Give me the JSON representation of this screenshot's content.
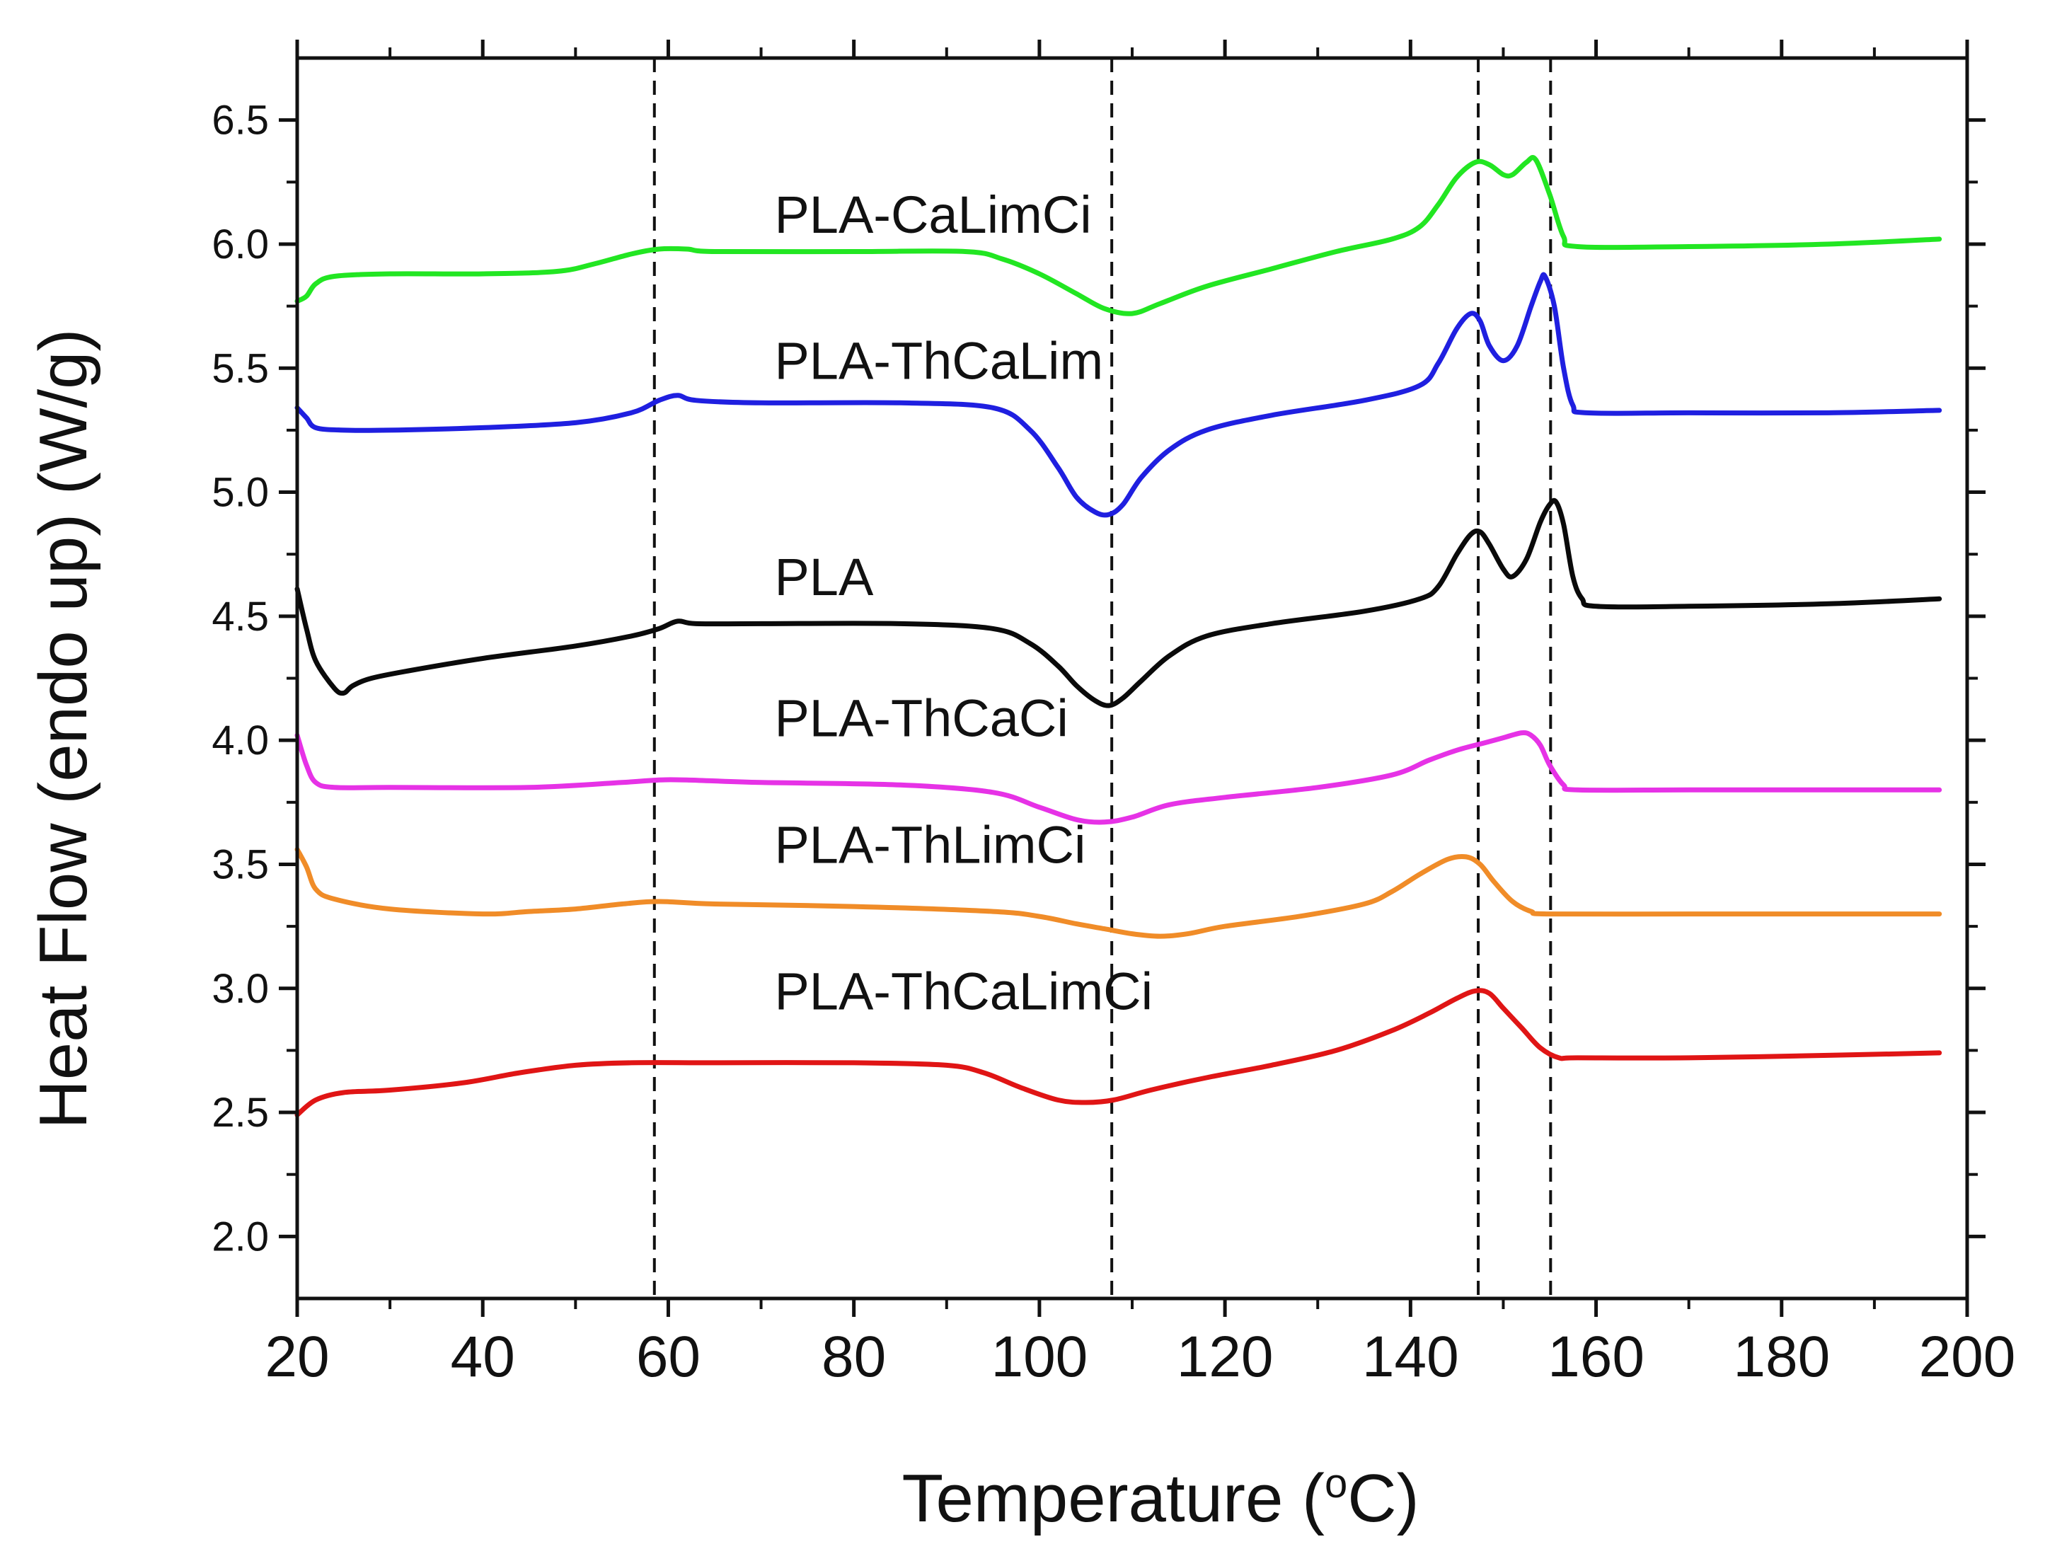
{
  "chart_data": {
    "type": "line",
    "title": "",
    "xlabel": "Temperature (",
    "xlabel_sup": "o",
    "xlabel_suffix": "C)",
    "ylabel": "Heat Flow (endo up) (W/g)",
    "xlim": [
      20,
      200
    ],
    "ylim": [
      1.75,
      6.75
    ],
    "xticks": [
      20,
      40,
      60,
      80,
      100,
      120,
      140,
      160,
      180,
      200
    ],
    "yticks": [
      2.0,
      2.5,
      3.0,
      3.5,
      4.0,
      4.5,
      5.0,
      5.5,
      6.0,
      6.5
    ],
    "ytick_labels": [
      "2.0",
      "2.5",
      "3.0",
      "3.5",
      "4.0",
      "4.5",
      "5.0",
      "5.5",
      "6.0",
      "6.5"
    ],
    "minor_x_step": 10,
    "minor_y_step": 0.25,
    "reference_lines_x": [
      58.5,
      107.8,
      147.3,
      155.1
    ],
    "series": [
      {
        "name": "PLA-CaLimCi",
        "color": "#22e622",
        "label_at": [
          60,
          6.12
        ],
        "points": [
          [
            20,
            5.77
          ],
          [
            21,
            5.79
          ],
          [
            22,
            5.84
          ],
          [
            24,
            5.87
          ],
          [
            30,
            5.88
          ],
          [
            40,
            5.88
          ],
          [
            48,
            5.89
          ],
          [
            52,
            5.92
          ],
          [
            56,
            5.96
          ],
          [
            59,
            5.98
          ],
          [
            62,
            5.98
          ],
          [
            65,
            5.97
          ],
          [
            80,
            5.97
          ],
          [
            92,
            5.97
          ],
          [
            96,
            5.94
          ],
          [
            100,
            5.88
          ],
          [
            104,
            5.8
          ],
          [
            107,
            5.74
          ],
          [
            110,
            5.72
          ],
          [
            113,
            5.76
          ],
          [
            118,
            5.83
          ],
          [
            125,
            5.9
          ],
          [
            132,
            5.97
          ],
          [
            138,
            6.02
          ],
          [
            141,
            6.07
          ],
          [
            143,
            6.16
          ],
          [
            145,
            6.27
          ],
          [
            147,
            6.33
          ],
          [
            148.5,
            6.32
          ],
          [
            150,
            6.28
          ],
          [
            151,
            6.28
          ],
          [
            152.5,
            6.33
          ],
          [
            153.5,
            6.34
          ],
          [
            155,
            6.2
          ],
          [
            156.5,
            6.03
          ],
          [
            158,
            5.99
          ],
          [
            170,
            5.99
          ],
          [
            185,
            6.0
          ],
          [
            197,
            6.02
          ]
        ]
      },
      {
        "name": "PLA-ThCaLim",
        "color": "#1f1fe0",
        "label_at": [
          60,
          5.53
        ],
        "points": [
          [
            20,
            5.34
          ],
          [
            21,
            5.3
          ],
          [
            22,
            5.26
          ],
          [
            25,
            5.25
          ],
          [
            30,
            5.25
          ],
          [
            40,
            5.26
          ],
          [
            50,
            5.28
          ],
          [
            56,
            5.32
          ],
          [
            59,
            5.37
          ],
          [
            61,
            5.39
          ],
          [
            63,
            5.37
          ],
          [
            70,
            5.36
          ],
          [
            85,
            5.36
          ],
          [
            95,
            5.34
          ],
          [
            99,
            5.25
          ],
          [
            102,
            5.1
          ],
          [
            104,
            4.98
          ],
          [
            106,
            4.92
          ],
          [
            107.5,
            4.91
          ],
          [
            109,
            4.95
          ],
          [
            111,
            5.06
          ],
          [
            114,
            5.17
          ],
          [
            118,
            5.25
          ],
          [
            125,
            5.31
          ],
          [
            135,
            5.37
          ],
          [
            141,
            5.43
          ],
          [
            143,
            5.52
          ],
          [
            145,
            5.66
          ],
          [
            146.5,
            5.72
          ],
          [
            147.5,
            5.69
          ],
          [
            148.5,
            5.59
          ],
          [
            150,
            5.53
          ],
          [
            151.5,
            5.59
          ],
          [
            153,
            5.75
          ],
          [
            154,
            5.85
          ],
          [
            154.5,
            5.87
          ],
          [
            155.5,
            5.75
          ],
          [
            156.5,
            5.5
          ],
          [
            157.5,
            5.35
          ],
          [
            159,
            5.32
          ],
          [
            170,
            5.32
          ],
          [
            185,
            5.32
          ],
          [
            197,
            5.33
          ]
        ]
      },
      {
        "name": "PLA",
        "color": "#0a0a0a",
        "label_at": [
          60,
          4.66
        ],
        "points": [
          [
            20,
            4.61
          ],
          [
            21,
            4.45
          ],
          [
            22,
            4.32
          ],
          [
            24,
            4.21
          ],
          [
            25,
            4.19
          ],
          [
            26,
            4.22
          ],
          [
            28,
            4.25
          ],
          [
            32,
            4.28
          ],
          [
            40,
            4.33
          ],
          [
            50,
            4.38
          ],
          [
            56,
            4.42
          ],
          [
            59,
            4.45
          ],
          [
            61,
            4.48
          ],
          [
            63,
            4.47
          ],
          [
            70,
            4.47
          ],
          [
            85,
            4.47
          ],
          [
            95,
            4.45
          ],
          [
            99,
            4.39
          ],
          [
            102,
            4.3
          ],
          [
            104,
            4.22
          ],
          [
            106,
            4.16
          ],
          [
            107.5,
            4.14
          ],
          [
            109,
            4.17
          ],
          [
            111,
            4.24
          ],
          [
            114,
            4.34
          ],
          [
            118,
            4.42
          ],
          [
            125,
            4.47
          ],
          [
            135,
            4.52
          ],
          [
            141,
            4.57
          ],
          [
            143,
            4.62
          ],
          [
            145,
            4.75
          ],
          [
            146.5,
            4.83
          ],
          [
            147.5,
            4.84
          ],
          [
            148.5,
            4.79
          ],
          [
            150,
            4.69
          ],
          [
            151,
            4.66
          ],
          [
            152.5,
            4.73
          ],
          [
            154,
            4.88
          ],
          [
            155,
            4.95
          ],
          [
            155.7,
            4.96
          ],
          [
            156.5,
            4.87
          ],
          [
            157.5,
            4.66
          ],
          [
            158.5,
            4.57
          ],
          [
            160,
            4.54
          ],
          [
            170,
            4.54
          ],
          [
            185,
            4.55
          ],
          [
            197,
            4.57
          ]
        ]
      },
      {
        "name": "PLA-ThCaCi",
        "color": "#e632e6",
        "label_at": [
          60,
          4.09
        ],
        "points": [
          [
            20,
            4.02
          ],
          [
            21,
            3.9
          ],
          [
            22,
            3.83
          ],
          [
            24,
            3.81
          ],
          [
            30,
            3.81
          ],
          [
            45,
            3.81
          ],
          [
            55,
            3.83
          ],
          [
            59,
            3.84
          ],
          [
            62,
            3.84
          ],
          [
            70,
            3.83
          ],
          [
            85,
            3.82
          ],
          [
            95,
            3.79
          ],
          [
            100,
            3.73
          ],
          [
            104,
            3.68
          ],
          [
            107,
            3.67
          ],
          [
            110,
            3.69
          ],
          [
            114,
            3.74
          ],
          [
            120,
            3.77
          ],
          [
            130,
            3.81
          ],
          [
            138,
            3.86
          ],
          [
            142,
            3.92
          ],
          [
            145,
            3.96
          ],
          [
            148,
            3.99
          ],
          [
            150,
            4.01
          ],
          [
            152,
            4.03
          ],
          [
            153,
            4.02
          ],
          [
            154,
            3.98
          ],
          [
            155,
            3.9
          ],
          [
            156.5,
            3.82
          ],
          [
            158,
            3.8
          ],
          [
            170,
            3.8
          ],
          [
            185,
            3.8
          ],
          [
            197,
            3.8
          ]
        ]
      },
      {
        "name": "PLA-ThLimCi",
        "color": "#f08c28",
        "label_at": [
          60,
          3.58
        ],
        "points": [
          [
            20,
            3.56
          ],
          [
            21,
            3.49
          ],
          [
            22,
            3.4
          ],
          [
            24,
            3.36
          ],
          [
            30,
            3.32
          ],
          [
            40,
            3.3
          ],
          [
            45,
            3.31
          ],
          [
            50,
            3.32
          ],
          [
            55,
            3.34
          ],
          [
            59,
            3.35
          ],
          [
            65,
            3.34
          ],
          [
            80,
            3.33
          ],
          [
            95,
            3.31
          ],
          [
            100,
            3.29
          ],
          [
            104,
            3.26
          ],
          [
            107,
            3.24
          ],
          [
            110,
            3.22
          ],
          [
            113,
            3.21
          ],
          [
            116,
            3.22
          ],
          [
            120,
            3.25
          ],
          [
            128,
            3.29
          ],
          [
            135,
            3.34
          ],
          [
            138,
            3.39
          ],
          [
            141,
            3.46
          ],
          [
            144,
            3.52
          ],
          [
            146,
            3.53
          ],
          [
            147.5,
            3.5
          ],
          [
            149,
            3.43
          ],
          [
            151,
            3.35
          ],
          [
            153,
            3.31
          ],
          [
            155,
            3.3
          ],
          [
            170,
            3.3
          ],
          [
            185,
            3.3
          ],
          [
            197,
            3.3
          ]
        ]
      },
      {
        "name": "PLA-ThCaLimCi",
        "color": "#e01515",
        "label_at": [
          60,
          2.99
        ],
        "points": [
          [
            20,
            2.49
          ],
          [
            22,
            2.55
          ],
          [
            25,
            2.58
          ],
          [
            30,
            2.59
          ],
          [
            38,
            2.62
          ],
          [
            44,
            2.66
          ],
          [
            50,
            2.69
          ],
          [
            56,
            2.7
          ],
          [
            65,
            2.7
          ],
          [
            80,
            2.7
          ],
          [
            90,
            2.69
          ],
          [
            94,
            2.66
          ],
          [
            98,
            2.6
          ],
          [
            102,
            2.55
          ],
          [
            105,
            2.54
          ],
          [
            108,
            2.55
          ],
          [
            112,
            2.59
          ],
          [
            118,
            2.64
          ],
          [
            125,
            2.69
          ],
          [
            132,
            2.75
          ],
          [
            138,
            2.83
          ],
          [
            142,
            2.9
          ],
          [
            145,
            2.96
          ],
          [
            147,
            2.99
          ],
          [
            148.5,
            2.98
          ],
          [
            150,
            2.92
          ],
          [
            152,
            2.84
          ],
          [
            154,
            2.76
          ],
          [
            156,
            2.72
          ],
          [
            158,
            2.72
          ],
          [
            170,
            2.72
          ],
          [
            185,
            2.73
          ],
          [
            197,
            2.74
          ]
        ]
      }
    ]
  }
}
